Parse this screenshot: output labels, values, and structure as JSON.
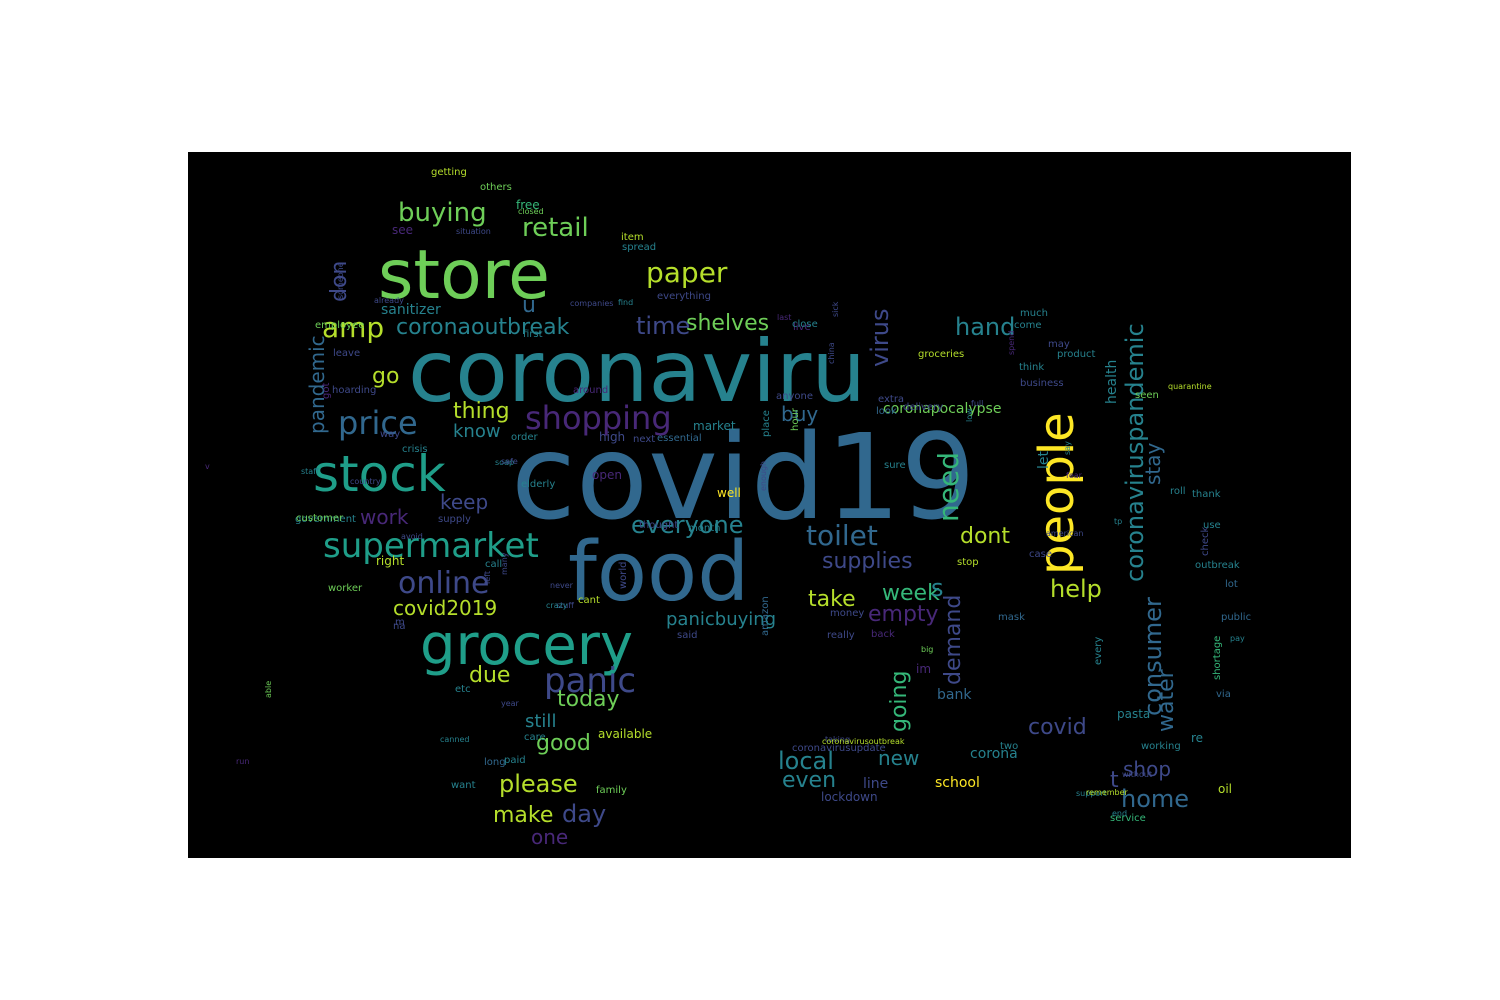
{
  "canvas": {
    "background": "#000000"
  },
  "palette": [
    "#440154",
    "#482878",
    "#3e4989",
    "#31688e",
    "#26828e",
    "#1f9e89",
    "#35b779",
    "#6ece58",
    "#b5de2b",
    "#fde725"
  ],
  "words": [
    {
      "text": "covid19",
      "color": "#31688e"
    },
    {
      "text": "coronaviru",
      "color": "#26828e"
    },
    {
      "text": "food",
      "color": "#31688e"
    },
    {
      "text": "store",
      "color": "#6ece58"
    },
    {
      "text": "grocery",
      "color": "#1f9e89"
    },
    {
      "text": "stock",
      "color": "#1f9e89"
    },
    {
      "text": "people",
      "color": "#fde725"
    },
    {
      "text": "supermarket",
      "color": "#1f9e89"
    },
    {
      "text": "price",
      "color": "#31688e"
    },
    {
      "text": "panic",
      "color": "#3e4989"
    },
    {
      "text": "shopping",
      "color": "#482878"
    },
    {
      "text": "online",
      "color": "#3e4989"
    },
    {
      "text": "paper",
      "color": "#b5de2b"
    },
    {
      "text": "toilet",
      "color": "#31688e"
    },
    {
      "text": "buying",
      "color": "#6ece58"
    },
    {
      "text": "retail",
      "color": "#6ece58"
    },
    {
      "text": "amp",
      "color": "#b5de2b"
    },
    {
      "text": "coronaoutbreak",
      "color": "#26828e"
    },
    {
      "text": "time",
      "color": "#3e4989"
    },
    {
      "text": "shelves",
      "color": "#6ece58"
    },
    {
      "text": "hand",
      "color": "#26828e"
    },
    {
      "text": "virus",
      "color": "#3e4989"
    },
    {
      "text": "need",
      "color": "#35b779"
    },
    {
      "text": "coronaviruspandemic",
      "color": "#26828e"
    },
    {
      "text": "help",
      "color": "#b5de2b"
    },
    {
      "text": "everyone",
      "color": "#26828e"
    },
    {
      "text": "supplies",
      "color": "#3e4989"
    },
    {
      "text": "week",
      "color": "#35b779"
    },
    {
      "text": "s",
      "color": "#26828e"
    },
    {
      "text": "dont",
      "color": "#b5de2b"
    },
    {
      "text": "covid2019",
      "color": "#b5de2b"
    },
    {
      "text": "panicbuying",
      "color": "#26828e"
    },
    {
      "text": "take",
      "color": "#b5de2b"
    },
    {
      "text": "empty",
      "color": "#482878"
    },
    {
      "text": "demand",
      "color": "#3e4989"
    },
    {
      "text": "consumer",
      "color": "#31688e"
    },
    {
      "text": "water",
      "color": "#31688e"
    },
    {
      "text": "covid",
      "color": "#3e4989"
    },
    {
      "text": "going",
      "color": "#35b779"
    },
    {
      "text": "new",
      "color": "#26828e"
    },
    {
      "text": "local",
      "color": "#26828e"
    },
    {
      "text": "even",
      "color": "#26828e"
    },
    {
      "text": "t",
      "color": "#3e4989"
    },
    {
      "text": "shop",
      "color": "#3e4989"
    },
    {
      "text": "home",
      "color": "#31688e"
    },
    {
      "text": "today",
      "color": "#6ece58"
    },
    {
      "text": "due",
      "color": "#b5de2b"
    },
    {
      "text": "still",
      "color": "#26828e"
    },
    {
      "text": "good",
      "color": "#6ece58"
    },
    {
      "text": "please",
      "color": "#b5de2b"
    },
    {
      "text": "make",
      "color": "#b5de2b"
    },
    {
      "text": "day",
      "color": "#3e4989"
    },
    {
      "text": "one",
      "color": "#482878"
    },
    {
      "text": "work",
      "color": "#482878"
    },
    {
      "text": "keep",
      "color": "#3e4989"
    },
    {
      "text": "thing",
      "color": "#b5de2b"
    },
    {
      "text": "know",
      "color": "#26828e"
    },
    {
      "text": "go",
      "color": "#b5de2b"
    },
    {
      "text": "u",
      "color": "#31688e"
    },
    {
      "text": "don",
      "color": "#3e4989"
    },
    {
      "text": "pandemic",
      "color": "#31688e"
    },
    {
      "text": "sanitizer",
      "color": "#26828e"
    },
    {
      "text": "buy",
      "color": "#31688e"
    },
    {
      "text": "coronapocalypse",
      "color": "#6ece58"
    },
    {
      "text": "stay",
      "color": "#31688e"
    },
    {
      "text": "let",
      "color": "#26828e"
    },
    {
      "text": "health",
      "color": "#26828e"
    },
    {
      "text": "school",
      "color": "#fde725"
    },
    {
      "text": "corona",
      "color": "#26828e"
    },
    {
      "text": "bank",
      "color": "#31688e"
    },
    {
      "text": "im",
      "color": "#482878"
    },
    {
      "text": "line",
      "color": "#3e4989"
    },
    {
      "text": "lockdown",
      "color": "#3e4989"
    },
    {
      "text": "re",
      "color": "#26828e"
    },
    {
      "text": "pasta",
      "color": "#26828e"
    },
    {
      "text": "working",
      "color": "#26828e"
    },
    {
      "text": "oil",
      "color": "#b5de2b"
    },
    {
      "text": "service",
      "color": "#35b779"
    },
    {
      "text": "via",
      "color": "#31688e"
    },
    {
      "text": "shortage",
      "color": "#35b779"
    },
    {
      "text": "public",
      "color": "#31688e"
    },
    {
      "text": "lot",
      "color": "#31688e"
    },
    {
      "text": "outbreak",
      "color": "#26828e"
    },
    {
      "text": "check",
      "color": "#3e4989"
    },
    {
      "text": "use",
      "color": "#26828e"
    },
    {
      "text": "thank",
      "color": "#26828e"
    },
    {
      "text": "roll",
      "color": "#26828e"
    },
    {
      "text": "seen",
      "color": "#6ece58"
    },
    {
      "text": "well",
      "color": "#fde725"
    },
    {
      "text": "open",
      "color": "#482878"
    },
    {
      "text": "elderly",
      "color": "#26828e"
    },
    {
      "text": "month",
      "color": "#26828e"
    },
    {
      "text": "thought",
      "color": "#3e4989"
    },
    {
      "text": "market",
      "color": "#26828e"
    },
    {
      "text": "high",
      "color": "#3e4989"
    },
    {
      "text": "essential",
      "color": "#31688e"
    },
    {
      "text": "order",
      "color": "#26828e"
    },
    {
      "text": "next",
      "color": "#3e4989"
    },
    {
      "text": "way",
      "color": "#3e4989"
    },
    {
      "text": "crisis",
      "color": "#26828e"
    },
    {
      "text": "government",
      "color": "#26828e"
    },
    {
      "text": "customer",
      "color": "#6ece58"
    },
    {
      "text": "supply",
      "color": "#3e4989"
    },
    {
      "text": "right",
      "color": "#b5de2b"
    },
    {
      "text": "call",
      "color": "#26828e"
    },
    {
      "text": "worker",
      "color": "#6ece58"
    },
    {
      "text": "cant",
      "color": "#b5de2b"
    },
    {
      "text": "na",
      "color": "#3e4989"
    },
    {
      "text": "m",
      "color": "#3e4989"
    },
    {
      "text": "etc",
      "color": "#26828e"
    },
    {
      "text": "care",
      "color": "#26828e"
    },
    {
      "text": "available",
      "color": "#b5de2b"
    },
    {
      "text": "want",
      "color": "#26828e"
    },
    {
      "text": "family",
      "color": "#6ece58"
    },
    {
      "text": "long",
      "color": "#31688e"
    },
    {
      "text": "paid",
      "color": "#26828e"
    },
    {
      "text": "coronavirusupdate",
      "color": "#3e4989"
    },
    {
      "text": "two",
      "color": "#26828e"
    },
    {
      "text": "said",
      "color": "#3e4989"
    },
    {
      "text": "world",
      "color": "#3e4989"
    },
    {
      "text": "back",
      "color": "#482878"
    },
    {
      "text": "really",
      "color": "#3e4989"
    },
    {
      "text": "money",
      "color": "#3e4989"
    },
    {
      "text": "every",
      "color": "#26828e"
    },
    {
      "text": "amazon",
      "color": "#31688e"
    },
    {
      "text": "mask",
      "color": "#31688e"
    },
    {
      "text": "stop",
      "color": "#b5de2b"
    },
    {
      "text": "case",
      "color": "#3e4989"
    },
    {
      "text": "sure",
      "color": "#26828e"
    },
    {
      "text": "look",
      "color": "#31688e"
    },
    {
      "text": "hour",
      "color": "#6ece58"
    },
    {
      "text": "delivery",
      "color": "#3e4989"
    },
    {
      "text": "place",
      "color": "#26828e"
    },
    {
      "text": "anyone",
      "color": "#3e4989"
    },
    {
      "text": "extra",
      "color": "#3e4989"
    },
    {
      "text": "product",
      "color": "#26828e"
    },
    {
      "text": "may",
      "color": "#3e4989"
    },
    {
      "text": "think",
      "color": "#26828e"
    },
    {
      "text": "business",
      "color": "#3e4989"
    },
    {
      "text": "live",
      "color": "#482878"
    },
    {
      "text": "groceries",
      "color": "#b5de2b"
    },
    {
      "text": "come",
      "color": "#26828e"
    },
    {
      "text": "close",
      "color": "#26828e"
    },
    {
      "text": "first",
      "color": "#26828e"
    },
    {
      "text": "employee",
      "color": "#6ece58"
    },
    {
      "text": "leave",
      "color": "#3e4989"
    },
    {
      "text": "see",
      "color": "#482878"
    },
    {
      "text": "free",
      "color": "#35b779"
    },
    {
      "text": "others",
      "color": "#6ece58"
    },
    {
      "text": "getting",
      "color": "#b5de2b"
    },
    {
      "text": "item",
      "color": "#b5de2b"
    },
    {
      "text": "spread",
      "color": "#26828e"
    },
    {
      "text": "everything",
      "color": "#3e4989"
    },
    {
      "text": "much",
      "color": "#26828e"
    },
    {
      "text": "around",
      "color": "#482878"
    },
    {
      "text": "hoarding",
      "color": "#3e4989"
    },
    {
      "text": "got",
      "color": "#482878"
    },
    {
      "text": "country",
      "color": "#3e4989"
    },
    {
      "text": "avoid",
      "color": "#3e4989"
    },
    {
      "text": "year",
      "color": "#3e4989"
    },
    {
      "text": "stuff",
      "color": "#3e4989"
    },
    {
      "text": "crazy",
      "color": "#26828e"
    },
    {
      "text": "canned",
      "color": "#26828e"
    },
    {
      "text": "never",
      "color": "#3e4989"
    },
    {
      "text": "many",
      "color": "#3e4989"
    },
    {
      "text": "soap",
      "color": "#26828e"
    },
    {
      "text": "staff",
      "color": "#26828e"
    },
    {
      "text": "safe",
      "color": "#3e4989"
    },
    {
      "text": "left",
      "color": "#3e4989"
    },
    {
      "text": "enough",
      "color": "#3e4989"
    },
    {
      "text": "american",
      "color": "#3e4989"
    },
    {
      "text": "fear",
      "color": "#482878"
    },
    {
      "text": "tp",
      "color": "#26828e"
    },
    {
      "text": "say",
      "color": "#26828e"
    },
    {
      "text": "quarantine",
      "color": "#b5de2b"
    },
    {
      "text": "support",
      "color": "#26828e"
    },
    {
      "text": "remember",
      "color": "#b5de2b"
    },
    {
      "text": "end",
      "color": "#26828e"
    },
    {
      "text": "without",
      "color": "#3e4989"
    },
    {
      "text": "taking",
      "color": "#3e4989"
    },
    {
      "text": "big",
      "color": "#6ece58"
    },
    {
      "text": "pay",
      "color": "#26828e"
    },
    {
      "text": "coronavirusoutbreak",
      "color": "#b5de2b"
    },
    {
      "text": "run",
      "color": "#482878"
    },
    {
      "text": "able",
      "color": "#6ece58"
    },
    {
      "text": "v",
      "color": "#482878"
    },
    {
      "text": "closed",
      "color": "#6ece58"
    },
    {
      "text": "situation",
      "color": "#3e4989"
    },
    {
      "text": "someone",
      "color": "#3e4989"
    },
    {
      "text": "companies",
      "color": "#3e4989"
    },
    {
      "text": "already",
      "color": "#3e4989"
    },
    {
      "text": "find",
      "color": "#26828e"
    },
    {
      "text": "last",
      "color": "#482878"
    },
    {
      "text": "sick",
      "color": "#3e4989"
    },
    {
      "text": "china",
      "color": "#3e4989"
    },
    {
      "text": "full",
      "color": "#3e4989"
    },
    {
      "text": "low",
      "color": "#26828e"
    },
    {
      "text": "spend",
      "color": "#482878"
    }
  ]
}
